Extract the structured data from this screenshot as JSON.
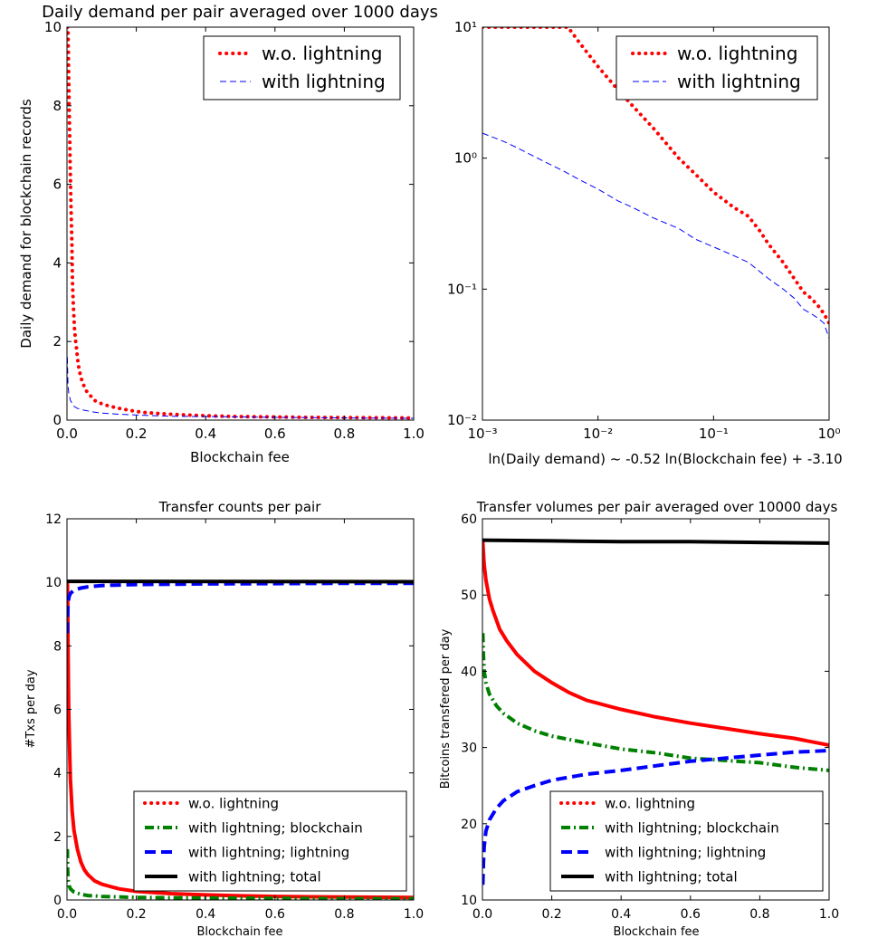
{
  "figure": {
    "charts": [
      {
        "id": "tl",
        "title": "Daily demand per pair averaged over 1000 days",
        "xlabel": "Blockchain fee",
        "ylabel": "Daily demand for blockchain records"
      },
      {
        "id": "tr",
        "title": "",
        "xlabel": "ln(Daily demand) ~ -0.52 ln(Blockchain fee) + -3.10",
        "ylabel": ""
      },
      {
        "id": "bl",
        "title": "Transfer counts per pair",
        "xlabel": "Blockchain fee",
        "ylabel": "#Txs per day"
      },
      {
        "id": "br",
        "title": "Transfer volumes per pair averaged over 10000 days",
        "xlabel": "Blockchain fee",
        "ylabel": "Bitcoins transfered per day"
      }
    ]
  },
  "chart_data": [
    {
      "id": "tl",
      "type": "line",
      "title": "Daily demand per pair averaged over 1000 days",
      "xlabel": "Blockchain fee",
      "ylabel": "Daily demand for blockchain records",
      "xlim": [
        0,
        1
      ],
      "ylim": [
        0,
        10
      ],
      "xticks": [
        0,
        0.2,
        0.4,
        0.6,
        0.8,
        1.0
      ],
      "xtick_labels": [
        "0.0",
        "0.2",
        "0.4",
        "0.6",
        "0.8",
        "1.0"
      ],
      "yticks": [
        0,
        2,
        4,
        6,
        8,
        10
      ],
      "ytick_labels": [
        "0",
        "2",
        "4",
        "6",
        "8",
        "10"
      ],
      "legend": "top-right",
      "series": [
        {
          "name": "w.o. lightning",
          "style": "dots",
          "color": "#ff0000",
          "width": 4,
          "x": [
            0.001,
            0.002,
            0.003,
            0.004,
            0.005,
            0.006,
            0.007,
            0.008,
            0.009,
            0.01,
            0.011,
            0.012,
            0.013,
            0.014,
            0.015,
            0.016,
            0.018,
            0.02,
            0.022,
            0.025,
            0.028,
            0.03,
            0.033,
            0.036,
            0.04,
            0.045,
            0.05,
            0.055,
            0.06,
            0.07,
            0.08,
            0.09,
            0.1,
            0.12,
            0.14,
            0.16,
            0.18,
            0.2,
            0.23,
            0.26,
            0.3,
            0.35,
            0.4,
            0.45,
            0.5,
            0.55,
            0.6,
            0.7,
            0.8,
            0.9,
            1.0
          ],
          "y": [
            10,
            10,
            10,
            9.4,
            8.8,
            8.2,
            7.6,
            7.1,
            6.6,
            6.2,
            5.7,
            5.3,
            4.9,
            4.5,
            4.1,
            3.5,
            3.0,
            2.6,
            2.3,
            2.0,
            1.8,
            1.6,
            1.4,
            1.25,
            1.1,
            0.95,
            0.85,
            0.75,
            0.7,
            0.6,
            0.5,
            0.45,
            0.42,
            0.36,
            0.32,
            0.28,
            0.25,
            0.22,
            0.19,
            0.17,
            0.15,
            0.13,
            0.11,
            0.1,
            0.09,
            0.085,
            0.08,
            0.07,
            0.065,
            0.06,
            0.055
          ]
        },
        {
          "name": "with lightning",
          "style": "dashed",
          "color": "#0000ff",
          "width": 1,
          "x": [
            0.001,
            0.003,
            0.005,
            0.01,
            0.02,
            0.03,
            0.05,
            0.08,
            0.1,
            0.15,
            0.2,
            0.3,
            0.4,
            0.5,
            0.6,
            0.7,
            0.8,
            0.9,
            1.0
          ],
          "y": [
            1.6,
            0.9,
            0.7,
            0.5,
            0.35,
            0.3,
            0.25,
            0.2,
            0.18,
            0.15,
            0.13,
            0.1,
            0.09,
            0.08,
            0.07,
            0.065,
            0.055,
            0.05,
            0.045
          ]
        }
      ]
    },
    {
      "id": "tr",
      "type": "line",
      "title": "",
      "xlabel": "ln(Daily demand) ~ -0.52 ln(Blockchain fee) + -3.10",
      "ylabel": "",
      "xscale": "log",
      "yscale": "log",
      "xlim": [
        0.001,
        1
      ],
      "ylim": [
        0.01,
        10
      ],
      "xticks": [
        0.001,
        0.01,
        0.1,
        1
      ],
      "xtick_labels": [
        "10^-3",
        "10^-2",
        "10^-1",
        "10^0"
      ],
      "yticks": [
        0.01,
        0.1,
        1,
        10
      ],
      "ytick_labels": [
        "10^-2",
        "10^-1",
        "10^0",
        "10^1"
      ],
      "legend": "top-right",
      "series": [
        {
          "name": "w.o. lightning",
          "style": "dots",
          "color": "#ff0000",
          "width": 4,
          "x": [
            0.001,
            0.0015,
            0.002,
            0.003,
            0.004,
            0.005,
            0.0055,
            0.007,
            0.01,
            0.015,
            0.02,
            0.03,
            0.05,
            0.07,
            0.1,
            0.15,
            0.2,
            0.25,
            0.3,
            0.4,
            0.5,
            0.6,
            0.7,
            0.8,
            0.9,
            1.0
          ],
          "y": [
            10,
            10,
            10,
            10,
            10,
            10,
            10,
            7.5,
            5.0,
            3.3,
            2.5,
            1.7,
            1.0,
            0.75,
            0.55,
            0.42,
            0.36,
            0.28,
            0.22,
            0.16,
            0.12,
            0.095,
            0.085,
            0.075,
            0.065,
            0.055
          ]
        },
        {
          "name": "with lightning",
          "style": "dashed",
          "color": "#0000ff",
          "width": 1,
          "x": [
            0.001,
            0.0015,
            0.002,
            0.003,
            0.005,
            0.007,
            0.01,
            0.015,
            0.02,
            0.03,
            0.05,
            0.07,
            0.1,
            0.15,
            0.2,
            0.3,
            0.4,
            0.5,
            0.6,
            0.7,
            0.8,
            0.9,
            1.0
          ],
          "y": [
            1.55,
            1.35,
            1.2,
            1.0,
            0.8,
            0.68,
            0.58,
            0.47,
            0.42,
            0.35,
            0.29,
            0.24,
            0.21,
            0.18,
            0.16,
            0.12,
            0.1,
            0.085,
            0.07,
            0.065,
            0.06,
            0.055,
            0.042
          ]
        }
      ]
    },
    {
      "id": "bl",
      "type": "line",
      "title": "Transfer counts per pair",
      "xlabel": "Blockchain fee",
      "ylabel": "#Txs per day",
      "xlim": [
        0,
        1
      ],
      "ylim": [
        0,
        12
      ],
      "xticks": [
        0,
        0.2,
        0.4,
        0.6,
        0.8,
        1.0
      ],
      "xtick_labels": [
        "0.0",
        "0.2",
        "0.4",
        "0.6",
        "0.8",
        "1.0"
      ],
      "yticks": [
        0,
        2,
        4,
        6,
        8,
        10,
        12
      ],
      "ytick_labels": [
        "0",
        "2",
        "4",
        "6",
        "8",
        "10",
        "12"
      ],
      "legend": "lower right",
      "series": [
        {
          "name": "w.o. lightning",
          "style": "solid",
          "color": "#ff0000",
          "width": 4,
          "legend_style": "dots",
          "x": [
            0.001,
            0.002,
            0.003,
            0.005,
            0.008,
            0.01,
            0.015,
            0.02,
            0.03,
            0.04,
            0.05,
            0.06,
            0.08,
            0.1,
            0.15,
            0.2,
            0.3,
            0.4,
            0.5,
            0.6,
            0.7,
            0.8,
            0.9,
            1.0
          ],
          "y": [
            10,
            9.5,
            8,
            6,
            4.5,
            3.8,
            2.8,
            2.2,
            1.6,
            1.2,
            0.95,
            0.8,
            0.6,
            0.5,
            0.35,
            0.27,
            0.2,
            0.16,
            0.13,
            0.11,
            0.1,
            0.09,
            0.085,
            0.08
          ]
        },
        {
          "name": "with lightning; blockchain",
          "style": "dashdot",
          "color": "#008000",
          "width": 4,
          "x": [
            0.001,
            0.002,
            0.004,
            0.006,
            0.01,
            0.02,
            0.04,
            0.06,
            0.1,
            0.2,
            0.4,
            0.6,
            0.8,
            1.0
          ],
          "y": [
            1.6,
            0.9,
            0.6,
            0.45,
            0.35,
            0.25,
            0.18,
            0.14,
            0.11,
            0.08,
            0.06,
            0.05,
            0.04,
            0.04
          ]
        },
        {
          "name": "with lightning; lightning",
          "style": "dashed",
          "color": "#0000ff",
          "width": 4,
          "x": [
            0.001,
            0.002,
            0.004,
            0.006,
            0.01,
            0.02,
            0.04,
            0.06,
            0.1,
            0.2,
            0.4,
            0.6,
            0.8,
            1.0
          ],
          "y": [
            8.4,
            9.1,
            9.4,
            9.55,
            9.65,
            9.75,
            9.82,
            9.86,
            9.9,
            9.93,
            9.95,
            9.96,
            9.97,
            9.97
          ]
        },
        {
          "name": "with lightning; total",
          "style": "solid",
          "color": "#000000",
          "width": 4,
          "x": [
            0,
            1.0
          ],
          "y": [
            10.03,
            10.02
          ]
        }
      ]
    },
    {
      "id": "br",
      "type": "line",
      "title": "Transfer volumes per pair averaged over 10000 days",
      "xlabel": "Blockchain fee",
      "ylabel": "Bitcoins transfered per day",
      "xlim": [
        0,
        1
      ],
      "ylim": [
        10,
        60
      ],
      "xticks": [
        0,
        0.2,
        0.4,
        0.6,
        0.8,
        1.0
      ],
      "xtick_labels": [
        "0.0",
        "0.2",
        "0.4",
        "0.6",
        "0.8",
        "1.0"
      ],
      "yticks": [
        10,
        20,
        30,
        40,
        50,
        60
      ],
      "ytick_labels": [
        "10",
        "20",
        "30",
        "40",
        "50",
        "60"
      ],
      "legend": "lower right",
      "series": [
        {
          "name": "w.o. lightning",
          "style": "solid",
          "color": "#ff0000",
          "width": 4,
          "legend_style": "dots",
          "x": [
            0.001,
            0.003,
            0.005,
            0.01,
            0.02,
            0.03,
            0.05,
            0.07,
            0.1,
            0.15,
            0.2,
            0.25,
            0.3,
            0.4,
            0.5,
            0.6,
            0.7,
            0.8,
            0.9,
            1.0
          ],
          "y": [
            57,
            55.5,
            54,
            52,
            49.5,
            48,
            45.5,
            44,
            42.2,
            40,
            38.5,
            37.2,
            36.2,
            35,
            34,
            33.2,
            32.5,
            31.8,
            31.2,
            30.3
          ]
        },
        {
          "name": "with lightning; blockchain",
          "style": "dashdot",
          "color": "#008000",
          "width": 4,
          "x": [
            0.001,
            0.003,
            0.005,
            0.01,
            0.02,
            0.04,
            0.06,
            0.1,
            0.15,
            0.2,
            0.3,
            0.4,
            0.5,
            0.6,
            0.7,
            0.8,
            0.9,
            1.0
          ],
          "y": [
            45,
            42,
            40,
            38.5,
            37,
            35.5,
            34.5,
            33.2,
            32.2,
            31.5,
            30.6,
            29.8,
            29.3,
            28.6,
            28.3,
            28.0,
            27.4,
            27.0
          ]
        },
        {
          "name": "with lightning; lightning",
          "style": "dashed",
          "color": "#0000ff",
          "width": 4,
          "x": [
            0.001,
            0.003,
            0.005,
            0.01,
            0.02,
            0.04,
            0.06,
            0.1,
            0.15,
            0.2,
            0.3,
            0.4,
            0.5,
            0.6,
            0.7,
            0.8,
            0.9,
            1.0
          ],
          "y": [
            12,
            15,
            17,
            19,
            20.5,
            22,
            23,
            24.2,
            25,
            25.7,
            26.5,
            27,
            27.6,
            28.2,
            28.6,
            29.0,
            29.4,
            29.6
          ]
        },
        {
          "name": "with lightning; total",
          "style": "solid",
          "color": "#000000",
          "width": 4,
          "x": [
            0,
            0.2,
            0.4,
            0.6,
            0.8,
            1.0
          ],
          "y": [
            57.2,
            57.1,
            57.0,
            57.0,
            56.9,
            56.8
          ]
        }
      ]
    }
  ]
}
